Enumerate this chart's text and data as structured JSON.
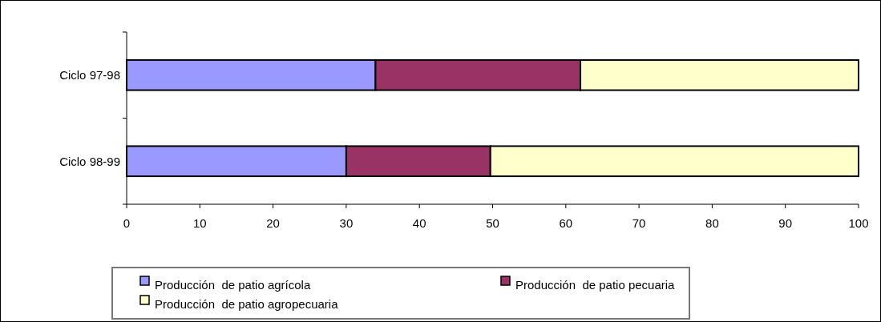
{
  "chart_data": {
    "type": "bar",
    "orientation": "horizontal",
    "stacked": true,
    "categories": [
      "Ciclo 97-98",
      "Ciclo 98-99"
    ],
    "series": [
      {
        "name": "Producción  de patio agrícola",
        "color": "#9999ff",
        "values": [
          34,
          30
        ]
      },
      {
        "name": "Producción  de patio pecuaria",
        "color": "#993366",
        "values": [
          28,
          19.7
        ]
      },
      {
        "name": "Producción  de patio agropecuaria",
        "color": "#ffffcc",
        "values": [
          38,
          50.3
        ]
      }
    ],
    "xlim": [
      0,
      100
    ],
    "xticks": [
      0,
      10,
      20,
      30,
      40,
      50,
      60,
      70,
      80,
      90,
      100
    ],
    "grid": false,
    "legend": "bottom"
  }
}
